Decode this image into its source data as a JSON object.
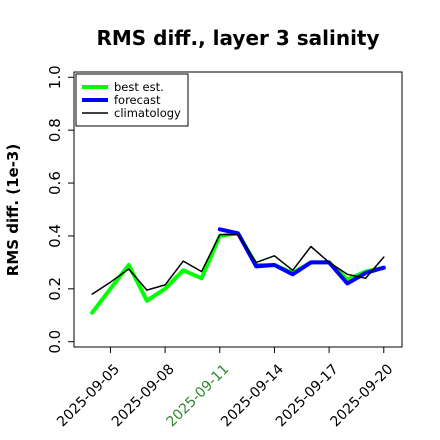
{
  "chart_data": {
    "type": "line",
    "title": "RMS diff., layer 3 salinity",
    "ylabel": "RMS diff. (1e-3)",
    "xlabel": "",
    "x": [
      "2025-09-04",
      "2025-09-05",
      "2025-09-06",
      "2025-09-07",
      "2025-09-08",
      "2025-09-09",
      "2025-09-10",
      "2025-09-11",
      "2025-09-12",
      "2025-09-13",
      "2025-09-14",
      "2025-09-15",
      "2025-09-16",
      "2025-09-17",
      "2025-09-18",
      "2025-09-19",
      "2025-09-20"
    ],
    "xlim": [
      "2025-09-03",
      "2025-09-21"
    ],
    "ylim": [
      -0.02,
      1.02
    ],
    "yticks": [
      0.0,
      0.2,
      0.4,
      0.6,
      0.8,
      1.0
    ],
    "ytick_labels": [
      "0.0",
      "0.2",
      "0.4",
      "0.6",
      "0.8",
      "1.0"
    ],
    "xticks": [
      "2025-09-05",
      "2025-09-08",
      "2025-09-11",
      "2025-09-14",
      "2025-09-17",
      "2025-09-20"
    ],
    "xtick_labels": [
      "2025-09-05",
      "2025-09-08",
      "2025-09-11",
      "2025-09-14",
      "2025-09-17",
      "2025-09-20"
    ],
    "xtick_colors": [
      "#000000",
      "#000000",
      "#2e8b2e",
      "#000000",
      "#000000",
      "#000000"
    ],
    "legend_position": "top-left",
    "grid": false,
    "series": [
      {
        "name": "best est.",
        "color": "#00ff00",
        "width": 4,
        "values": [
          0.11,
          0.2,
          0.29,
          0.155,
          0.2,
          0.27,
          0.24,
          0.4,
          0.41,
          0.29,
          0.29,
          0.26,
          0.3,
          0.3,
          0.235,
          0.265,
          0.28
        ]
      },
      {
        "name": "forecast",
        "color": "#0000ff",
        "width": 4,
        "values": [
          null,
          null,
          null,
          null,
          null,
          null,
          null,
          0.425,
          0.41,
          0.285,
          0.29,
          0.255,
          0.3,
          0.3,
          0.22,
          0.26,
          0.28
        ]
      },
      {
        "name": "climatology",
        "color": "#000000",
        "width": 1.5,
        "values": [
          0.18,
          0.225,
          0.275,
          0.195,
          0.215,
          0.305,
          0.265,
          0.405,
          0.405,
          0.3,
          0.325,
          0.27,
          0.36,
          0.3,
          0.255,
          0.24,
          0.32
        ]
      }
    ]
  }
}
